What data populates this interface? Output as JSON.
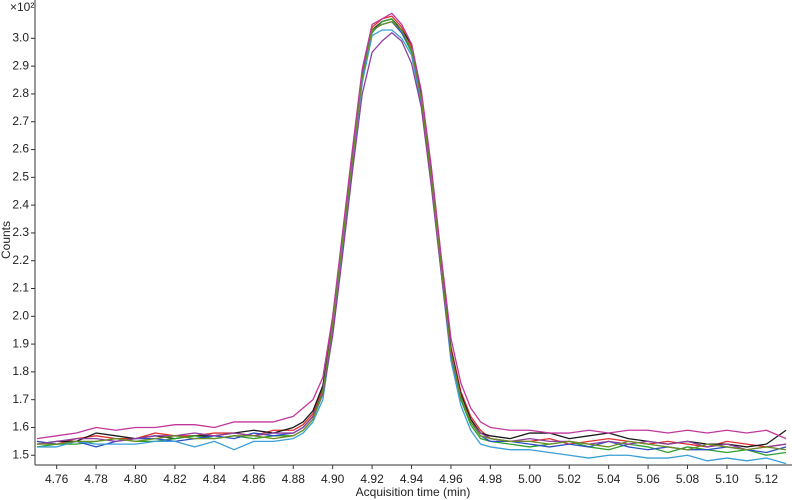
{
  "chart_data": {
    "type": "line",
    "x_label": "Acquisition time (min)",
    "y_label": "Counts",
    "y_multiplier": "×10²",
    "xlim": [
      4.749,
      5.133
    ],
    "ylim": [
      1.465,
      3.12
    ],
    "xticks": [
      4.76,
      4.78,
      {
        "value": 4.8,
        "label": "4.80"
      },
      4.82,
      4.84,
      4.86,
      4.88,
      {
        "value": 4.9,
        "label": "4.90"
      },
      4.92,
      4.94,
      4.96,
      4.98,
      {
        "value": 5.0,
        "label": "5.00"
      },
      5.02,
      5.04,
      5.06,
      5.08,
      {
        "value": 5.1,
        "label": "5.10"
      },
      5.12
    ],
    "yticks": [
      1.5,
      1.6,
      1.7,
      1.8,
      1.9,
      {
        "value": 2.0,
        "label": "2.0"
      },
      2.1,
      2.2,
      2.3,
      2.4,
      2.5,
      2.6,
      2.7,
      2.8,
      2.9,
      {
        "value": 3.0,
        "label": "3.0"
      }
    ],
    "x": [
      4.75,
      4.76,
      4.77,
      4.78,
      4.79,
      4.8,
      4.81,
      4.82,
      4.83,
      4.84,
      4.85,
      4.86,
      4.87,
      4.88,
      4.885,
      4.89,
      4.895,
      4.9,
      4.905,
      4.91,
      4.915,
      4.92,
      4.925,
      4.93,
      4.935,
      4.94,
      4.945,
      4.95,
      4.955,
      4.96,
      4.965,
      4.97,
      4.975,
      4.98,
      4.99,
      5.0,
      5.01,
      5.02,
      5.03,
      5.04,
      5.05,
      5.06,
      5.07,
      5.08,
      5.09,
      5.1,
      5.11,
      5.12,
      5.13
    ],
    "series": [
      {
        "color": "#e0302c",
        "values": [
          1.55,
          1.54,
          1.56,
          1.57,
          1.56,
          1.56,
          1.58,
          1.57,
          1.57,
          1.58,
          1.58,
          1.57,
          1.59,
          1.59,
          1.61,
          1.65,
          1.74,
          1.98,
          2.28,
          2.58,
          2.88,
          3.04,
          3.07,
          3.08,
          3.04,
          2.97,
          2.79,
          2.51,
          2.19,
          1.89,
          1.73,
          1.64,
          1.59,
          1.56,
          1.55,
          1.55,
          1.56,
          1.54,
          1.55,
          1.56,
          1.55,
          1.54,
          1.55,
          1.54,
          1.53,
          1.55,
          1.54,
          1.53,
          1.54
        ]
      },
      {
        "color": "#1a1a1a",
        "values": [
          1.54,
          1.55,
          1.55,
          1.58,
          1.57,
          1.56,
          1.57,
          1.56,
          1.57,
          1.57,
          1.58,
          1.59,
          1.58,
          1.6,
          1.62,
          1.66,
          1.75,
          1.97,
          2.27,
          2.57,
          2.86,
          3.03,
          3.06,
          3.07,
          3.03,
          2.98,
          2.8,
          2.52,
          2.2,
          1.88,
          1.72,
          1.63,
          1.58,
          1.57,
          1.56,
          1.58,
          1.58,
          1.56,
          1.57,
          1.58,
          1.56,
          1.55,
          1.54,
          1.55,
          1.54,
          1.54,
          1.53,
          1.54,
          1.59
        ]
      },
      {
        "color": "#2ca02c",
        "values": [
          1.53,
          1.54,
          1.54,
          1.55,
          1.56,
          1.55,
          1.55,
          1.56,
          1.57,
          1.56,
          1.57,
          1.56,
          1.57,
          1.57,
          1.59,
          1.63,
          1.72,
          1.96,
          2.26,
          2.56,
          2.85,
          3.02,
          3.06,
          3.07,
          3.02,
          2.95,
          2.77,
          2.49,
          2.17,
          1.86,
          1.7,
          1.61,
          1.56,
          1.55,
          1.54,
          1.53,
          1.54,
          1.55,
          1.53,
          1.52,
          1.54,
          1.53,
          1.51,
          1.53,
          1.52,
          1.51,
          1.52,
          1.5,
          1.51
        ]
      },
      {
        "color": "#2b4fc4",
        "values": [
          1.55,
          1.54,
          1.55,
          1.53,
          1.55,
          1.56,
          1.56,
          1.55,
          1.56,
          1.57,
          1.56,
          1.58,
          1.57,
          1.58,
          1.6,
          1.64,
          1.73,
          1.96,
          2.26,
          2.57,
          2.87,
          3.03,
          3.05,
          3.06,
          3.02,
          2.96,
          2.78,
          2.5,
          2.18,
          1.87,
          1.71,
          1.62,
          1.57,
          1.55,
          1.55,
          1.54,
          1.53,
          1.54,
          1.53,
          1.55,
          1.53,
          1.52,
          1.53,
          1.52,
          1.52,
          1.53,
          1.52,
          1.51,
          1.53
        ]
      },
      {
        "color": "#c2379e",
        "values": [
          1.56,
          1.57,
          1.58,
          1.6,
          1.59,
          1.6,
          1.6,
          1.61,
          1.61,
          1.6,
          1.62,
          1.62,
          1.62,
          1.64,
          1.67,
          1.7,
          1.78,
          2.0,
          2.3,
          2.6,
          2.89,
          3.05,
          3.07,
          3.09,
          3.05,
          2.98,
          2.81,
          2.54,
          2.22,
          1.92,
          1.76,
          1.67,
          1.62,
          1.6,
          1.59,
          1.59,
          1.58,
          1.58,
          1.59,
          1.58,
          1.59,
          1.59,
          1.58,
          1.59,
          1.58,
          1.59,
          1.58,
          1.59,
          1.56
        ]
      },
      {
        "color": "#3a9fd8",
        "values": [
          1.53,
          1.53,
          1.55,
          1.54,
          1.54,
          1.54,
          1.55,
          1.55,
          1.53,
          1.55,
          1.52,
          1.55,
          1.55,
          1.56,
          1.58,
          1.62,
          1.7,
          1.94,
          2.24,
          2.55,
          2.84,
          3.01,
          3.03,
          3.03,
          3.0,
          2.94,
          2.76,
          2.48,
          2.16,
          1.84,
          1.68,
          1.59,
          1.54,
          1.53,
          1.52,
          1.52,
          1.51,
          1.5,
          1.49,
          1.5,
          1.5,
          1.49,
          1.49,
          1.5,
          1.48,
          1.49,
          1.48,
          1.49,
          1.47
        ]
      },
      {
        "color": "#8e3fa0",
        "values": [
          1.54,
          1.55,
          1.56,
          1.56,
          1.55,
          1.56,
          1.57,
          1.57,
          1.58,
          1.57,
          1.58,
          1.57,
          1.58,
          1.58,
          1.6,
          1.64,
          1.72,
          1.93,
          2.22,
          2.52,
          2.8,
          2.95,
          2.99,
          3.02,
          2.99,
          2.91,
          2.75,
          2.47,
          2.16,
          1.86,
          1.71,
          1.62,
          1.58,
          1.56,
          1.55,
          1.56,
          1.55,
          1.55,
          1.54,
          1.55,
          1.54,
          1.55,
          1.54,
          1.55,
          1.53,
          1.54,
          1.52,
          1.53,
          1.54
        ]
      },
      {
        "color": "#6b8e23",
        "values": [
          1.54,
          1.54,
          1.55,
          1.55,
          1.56,
          1.55,
          1.56,
          1.57,
          1.56,
          1.56,
          1.57,
          1.57,
          1.56,
          1.57,
          1.59,
          1.63,
          1.73,
          1.97,
          2.27,
          2.56,
          2.86,
          3.03,
          3.05,
          3.06,
          3.03,
          2.96,
          2.78,
          2.5,
          2.18,
          1.87,
          1.71,
          1.62,
          1.57,
          1.56,
          1.55,
          1.55,
          1.54,
          1.55,
          1.54,
          1.53,
          1.55,
          1.54,
          1.53,
          1.52,
          1.54,
          1.53,
          1.52,
          1.53,
          1.52
        ]
      }
    ]
  }
}
